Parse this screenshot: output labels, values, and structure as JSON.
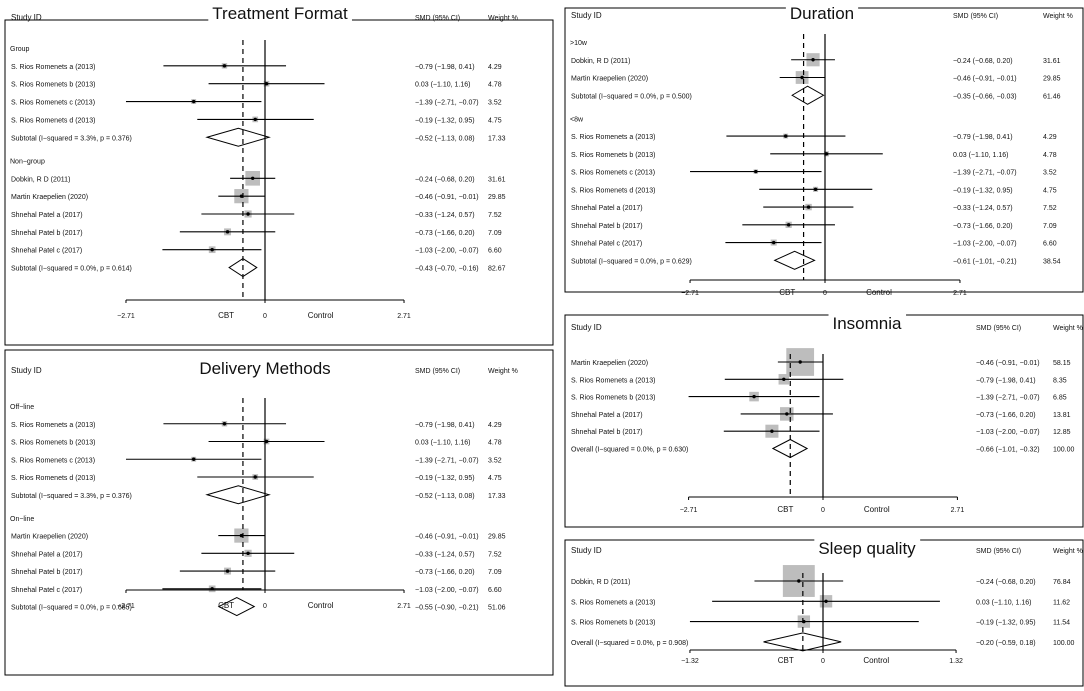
{
  "chart_data": [
    {
      "id": "p1",
      "type": "forest",
      "title": "Treatment Format",
      "columns": {
        "study": "Study ID",
        "smd": "SMD (95% CI)",
        "weight": "Weight %"
      },
      "axis": {
        "ticks": [
          -2.71,
          0,
          2.71
        ],
        "tick_labels": [
          "−2.71",
          "0",
          "2.71"
        ],
        "left_label": "CBT",
        "right_label": "Control",
        "pooled": -0.43
      },
      "groups": [
        {
          "label": "Group",
          "studies": [
            {
              "name": "S. Rios Romenets a (2013)",
              "est": -0.79,
              "lo": -1.98,
              "hi": 0.41,
              "ci": "−0.79 (−1.98, 0.41)",
              "weight": "4.29"
            },
            {
              "name": "S. Rios Romenets b (2013)",
              "est": 0.03,
              "lo": -1.1,
              "hi": 1.16,
              "ci": "0.03 (−1.10, 1.16)",
              "weight": "4.78"
            },
            {
              "name": "S. Rios Romenets c (2013)",
              "est": -1.39,
              "lo": -2.71,
              "hi": -0.07,
              "ci": "−1.39 (−2.71, −0.07)",
              "weight": "3.52"
            },
            {
              "name": "S. Rios Romenets d (2013)",
              "est": -0.19,
              "lo": -1.32,
              "hi": 0.95,
              "ci": "−0.19 (−1.32, 0.95)",
              "weight": "4.75"
            }
          ],
          "subtotal": {
            "name": "Subtotal  (I−squared = 3.3%, p = 0.376)",
            "est": -0.52,
            "lo": -1.13,
            "hi": 0.08,
            "ci": "−0.52 (−1.13, 0.08)",
            "weight": "17.33"
          }
        },
        {
          "label": "Non−group",
          "studies": [
            {
              "name": "Dobkin, R D (2011)",
              "est": -0.24,
              "lo": -0.68,
              "hi": 0.2,
              "ci": "−0.24 (−0.68, 0.20)",
              "weight": "31.61"
            },
            {
              "name": "Martin Kraepelien (2020)",
              "est": -0.46,
              "lo": -0.91,
              "hi": -0.01,
              "ci": "−0.46 (−0.91, −0.01)",
              "weight": "29.85"
            },
            {
              "name": "Shnehal Patel a (2017)",
              "est": -0.33,
              "lo": -1.24,
              "hi": 0.57,
              "ci": "−0.33 (−1.24, 0.57)",
              "weight": "7.52"
            },
            {
              "name": "Shnehal Patel b (2017)",
              "est": -0.73,
              "lo": -1.66,
              "hi": 0.2,
              "ci": "−0.73 (−1.66, 0.20)",
              "weight": "7.09"
            },
            {
              "name": "Shnehal Patel c (2017)",
              "est": -1.03,
              "lo": -2.0,
              "hi": -0.07,
              "ci": "−1.03 (−2.00, −0.07)",
              "weight": "6.60"
            }
          ],
          "subtotal": {
            "name": "Subtotal  (I−squared = 0.0%, p = 0.614)",
            "est": -0.43,
            "lo": -0.7,
            "hi": -0.16,
            "ci": "−0.43 (−0.70, −0.16)",
            "weight": "82.67"
          }
        }
      ]
    },
    {
      "id": "p2",
      "type": "forest",
      "title": "Duration",
      "columns": {
        "study": "Study ID",
        "smd": "SMD (95% CI)",
        "weight": "Weight %"
      },
      "axis": {
        "ticks": [
          -2.71,
          0,
          2.71
        ],
        "tick_labels": [
          "−2.71",
          "0",
          "2.71"
        ],
        "left_label": "CBT",
        "right_label": "Control",
        "pooled": -0.43
      },
      "groups": [
        {
          "label": ">10w",
          "studies": [
            {
              "name": "Dobkin, R D (2011)",
              "est": -0.24,
              "lo": -0.68,
              "hi": 0.2,
              "ci": "−0.24 (−0.68, 0.20)",
              "weight": "31.61"
            },
            {
              "name": "Martin Kraepelien (2020)",
              "est": -0.46,
              "lo": -0.91,
              "hi": -0.01,
              "ci": "−0.46 (−0.91, −0.01)",
              "weight": "29.85"
            }
          ],
          "subtotal": {
            "name": "Subtotal  (I−squared = 0.0%, p = 0.500)",
            "est": -0.35,
            "lo": -0.66,
            "hi": -0.03,
            "ci": "−0.35 (−0.66, −0.03)",
            "weight": "61.46"
          }
        },
        {
          "label": "<8w",
          "studies": [
            {
              "name": "S. Rios Romenets a (2013)",
              "est": -0.79,
              "lo": -1.98,
              "hi": 0.41,
              "ci": "−0.79 (−1.98, 0.41)",
              "weight": "4.29"
            },
            {
              "name": "S. Rios Romenets b (2013)",
              "est": 0.03,
              "lo": -1.1,
              "hi": 1.16,
              "ci": "0.03 (−1.10, 1.16)",
              "weight": "4.78"
            },
            {
              "name": "S. Rios Romenets c (2013)",
              "est": -1.39,
              "lo": -2.71,
              "hi": -0.07,
              "ci": "−1.39 (−2.71, −0.07)",
              "weight": "3.52"
            },
            {
              "name": "S. Rios Romenets d (2013)",
              "est": -0.19,
              "lo": -1.32,
              "hi": 0.95,
              "ci": "−0.19 (−1.32, 0.95)",
              "weight": "4.75"
            },
            {
              "name": "Shnehal Patel a (2017)",
              "est": -0.33,
              "lo": -1.24,
              "hi": 0.57,
              "ci": "−0.33 (−1.24, 0.57)",
              "weight": "7.52"
            },
            {
              "name": "Shnehal Patel b (2017)",
              "est": -0.73,
              "lo": -1.66,
              "hi": 0.2,
              "ci": "−0.73 (−1.66, 0.20)",
              "weight": "7.09"
            },
            {
              "name": "Shnehal Patel c (2017)",
              "est": -1.03,
              "lo": -2.0,
              "hi": -0.07,
              "ci": "−1.03 (−2.00, −0.07)",
              "weight": "6.60"
            }
          ],
          "subtotal": {
            "name": "Subtotal  (I−squared = 0.0%, p = 0.629)",
            "est": -0.61,
            "lo": -1.01,
            "hi": -0.21,
            "ci": "−0.61 (−1.01, −0.21)",
            "weight": "38.54"
          }
        }
      ]
    },
    {
      "id": "p3",
      "type": "forest",
      "title": "Delivery Methods",
      "columns": {
        "study": "Study ID",
        "smd": "SMD (95% CI)",
        "weight": "Weight %"
      },
      "axis": {
        "ticks": [
          -2.71,
          0,
          2.71
        ],
        "tick_labels": [
          "−2.71",
          "0",
          "2.71"
        ],
        "left_label": "CBT",
        "right_label": "Control",
        "pooled": -0.43
      },
      "groups": [
        {
          "label": "Off−line",
          "studies": [
            {
              "name": "S. Rios Romenets a (2013)",
              "est": -0.79,
              "lo": -1.98,
              "hi": 0.41,
              "ci": "−0.79 (−1.98, 0.41)",
              "weight": "4.29"
            },
            {
              "name": "S. Rios Romenets b (2013)",
              "est": 0.03,
              "lo": -1.1,
              "hi": 1.16,
              "ci": "0.03 (−1.10, 1.16)",
              "weight": "4.78"
            },
            {
              "name": "S. Rios Romenets c (2013)",
              "est": -1.39,
              "lo": -2.71,
              "hi": -0.07,
              "ci": "−1.39 (−2.71, −0.07)",
              "weight": "3.52"
            },
            {
              "name": "S. Rios Romenets d (2013)",
              "est": -0.19,
              "lo": -1.32,
              "hi": 0.95,
              "ci": "−0.19 (−1.32, 0.95)",
              "weight": "4.75"
            }
          ],
          "subtotal": {
            "name": "Subtotal  (I−squared = 3.3%, p = 0.376)",
            "est": -0.52,
            "lo": -1.13,
            "hi": 0.08,
            "ci": "−0.52 (−1.13, 0.08)",
            "weight": "17.33"
          }
        },
        {
          "label": "On−line",
          "studies": [
            {
              "name": "Martin Kraepelien (2020)",
              "est": -0.46,
              "lo": -0.91,
              "hi": -0.01,
              "ci": "−0.46 (−0.91, −0.01)",
              "weight": "29.85"
            },
            {
              "name": "Shnehal Patel a (2017)",
              "est": -0.33,
              "lo": -1.24,
              "hi": 0.57,
              "ci": "−0.33 (−1.24, 0.57)",
              "weight": "7.52"
            },
            {
              "name": "Shnehal Patel b (2017)",
              "est": -0.73,
              "lo": -1.66,
              "hi": 0.2,
              "ci": "−0.73 (−1.66, 0.20)",
              "weight": "7.09"
            },
            {
              "name": "Shnehal Patel c (2017)",
              "est": -1.03,
              "lo": -2.0,
              "hi": -0.07,
              "ci": "−1.03 (−2.00, −0.07)",
              "weight": "6.60"
            }
          ],
          "subtotal": {
            "name": "Subtotal  (I−squared = 0.0%, p = 0.685)",
            "est": -0.55,
            "lo": -0.9,
            "hi": -0.21,
            "ci": "−0.55 (−0.90, −0.21)",
            "weight": "51.06"
          }
        }
      ]
    },
    {
      "id": "p4",
      "type": "forest",
      "title": "Insomnia",
      "columns": {
        "study": "Study ID",
        "smd": "SMD (95% CI)",
        "weight": "Weight %"
      },
      "axis": {
        "ticks": [
          -2.71,
          0,
          2.71
        ],
        "tick_labels": [
          "−2.71",
          "0",
          "2.71"
        ],
        "left_label": "CBT",
        "right_label": "Control",
        "pooled": -0.66
      },
      "groups": [
        {
          "label": "",
          "studies": [
            {
              "name": "Martin Kraepelien (2020)",
              "est": -0.46,
              "lo": -0.91,
              "hi": -0.01,
              "ci": "−0.46 (−0.91, −0.01)",
              "weight": "58.15"
            },
            {
              "name": "S. Rios Romenets a (2013)",
              "est": -0.79,
              "lo": -1.98,
              "hi": 0.41,
              "ci": "−0.79 (−1.98, 0.41)",
              "weight": "8.35"
            },
            {
              "name": "S. Rios Romenets b (2013)",
              "est": -1.39,
              "lo": -2.71,
              "hi": -0.07,
              "ci": "−1.39 (−2.71, −0.07)",
              "weight": "6.85"
            },
            {
              "name": "Shnehal Patel a (2017)",
              "est": -0.73,
              "lo": -1.66,
              "hi": 0.2,
              "ci": "−0.73 (−1.66, 0.20)",
              "weight": "13.81"
            },
            {
              "name": "Shnehal Patel b (2017)",
              "est": -1.03,
              "lo": -2.0,
              "hi": -0.07,
              "ci": "−1.03 (−2.00, −0.07)",
              "weight": "12.85"
            }
          ],
          "subtotal": {
            "name": "Overall  (I−squared = 0.0%, p = 0.630)",
            "est": -0.66,
            "lo": -1.01,
            "hi": -0.32,
            "ci": "−0.66 (−1.01, −0.32)",
            "weight": "100.00"
          }
        }
      ]
    },
    {
      "id": "p5",
      "type": "forest",
      "title": "Sleep quality",
      "columns": {
        "study": "Study ID",
        "smd": "SMD (95% CI)",
        "weight": "Weight %"
      },
      "axis": {
        "ticks": [
          -1.32,
          0,
          1.32
        ],
        "tick_labels": [
          "−1.32",
          "0",
          "1.32"
        ],
        "left_label": "CBT",
        "right_label": "Control",
        "pooled": -0.2
      },
      "groups": [
        {
          "label": "",
          "studies": [
            {
              "name": "Dobkin, R D (2011)",
              "est": -0.24,
              "lo": -0.68,
              "hi": 0.2,
              "ci": "−0.24 (−0.68, 0.20)",
              "weight": "76.84"
            },
            {
              "name": "S. Rios Romenets a (2013)",
              "est": 0.03,
              "lo": -1.1,
              "hi": 1.16,
              "ci": "0.03 (−1.10, 1.16)",
              "weight": "11.62"
            },
            {
              "name": "S. Rios Romenets b (2013)",
              "est": -0.19,
              "lo": -1.32,
              "hi": 0.95,
              "ci": "−0.19 (−1.32, 0.95)",
              "weight": "11.54"
            }
          ],
          "subtotal": {
            "name": "Overall  (I−squared = 0.0%, p = 0.908)",
            "est": -0.2,
            "lo": -0.59,
            "hi": 0.18,
            "ci": "−0.20 (−0.59, 0.18)",
            "weight": "100.00"
          }
        }
      ]
    }
  ]
}
